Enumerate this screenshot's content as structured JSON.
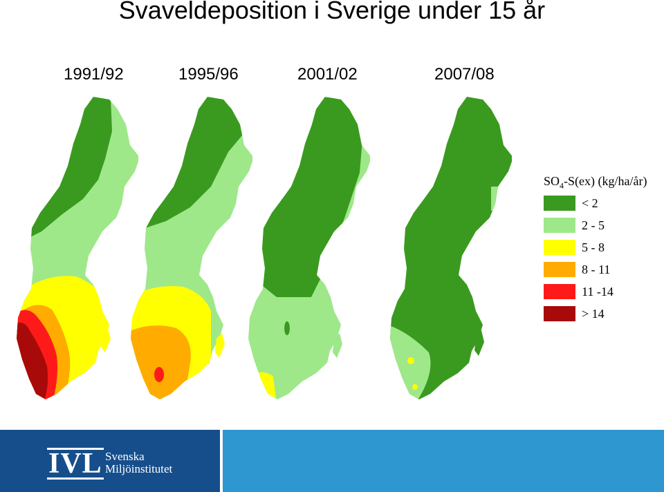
{
  "title": "Svaveldeposition i Sverige under 15 år",
  "maps": [
    {
      "year": "1991/92"
    },
    {
      "year": "1995/96"
    },
    {
      "year": "2001/02"
    },
    {
      "year": "2007/08"
    }
  ],
  "legend": {
    "title_main": "SO",
    "title_sub": "4",
    "title_rest": "-S(ex) (kg/ha/år)",
    "items": [
      {
        "label": "< 2",
        "color": "#3a9a1f"
      },
      {
        "label": "2 - 5",
        "color": "#9ee88a"
      },
      {
        "label": "5 - 8",
        "color": "#ffff00"
      },
      {
        "label": "8 - 11",
        "color": "#ffab00"
      },
      {
        "label": "11 -14",
        "color": "#ff1a1a"
      },
      {
        "label": "> 14",
        "color": "#a80a0a"
      }
    ]
  },
  "footer": {
    "logo": "IVL",
    "org_line1": "Svenska",
    "org_line2": "Miljöinstitutet",
    "panel_color": "#164e8c",
    "bar_color": "#2f97cf"
  }
}
